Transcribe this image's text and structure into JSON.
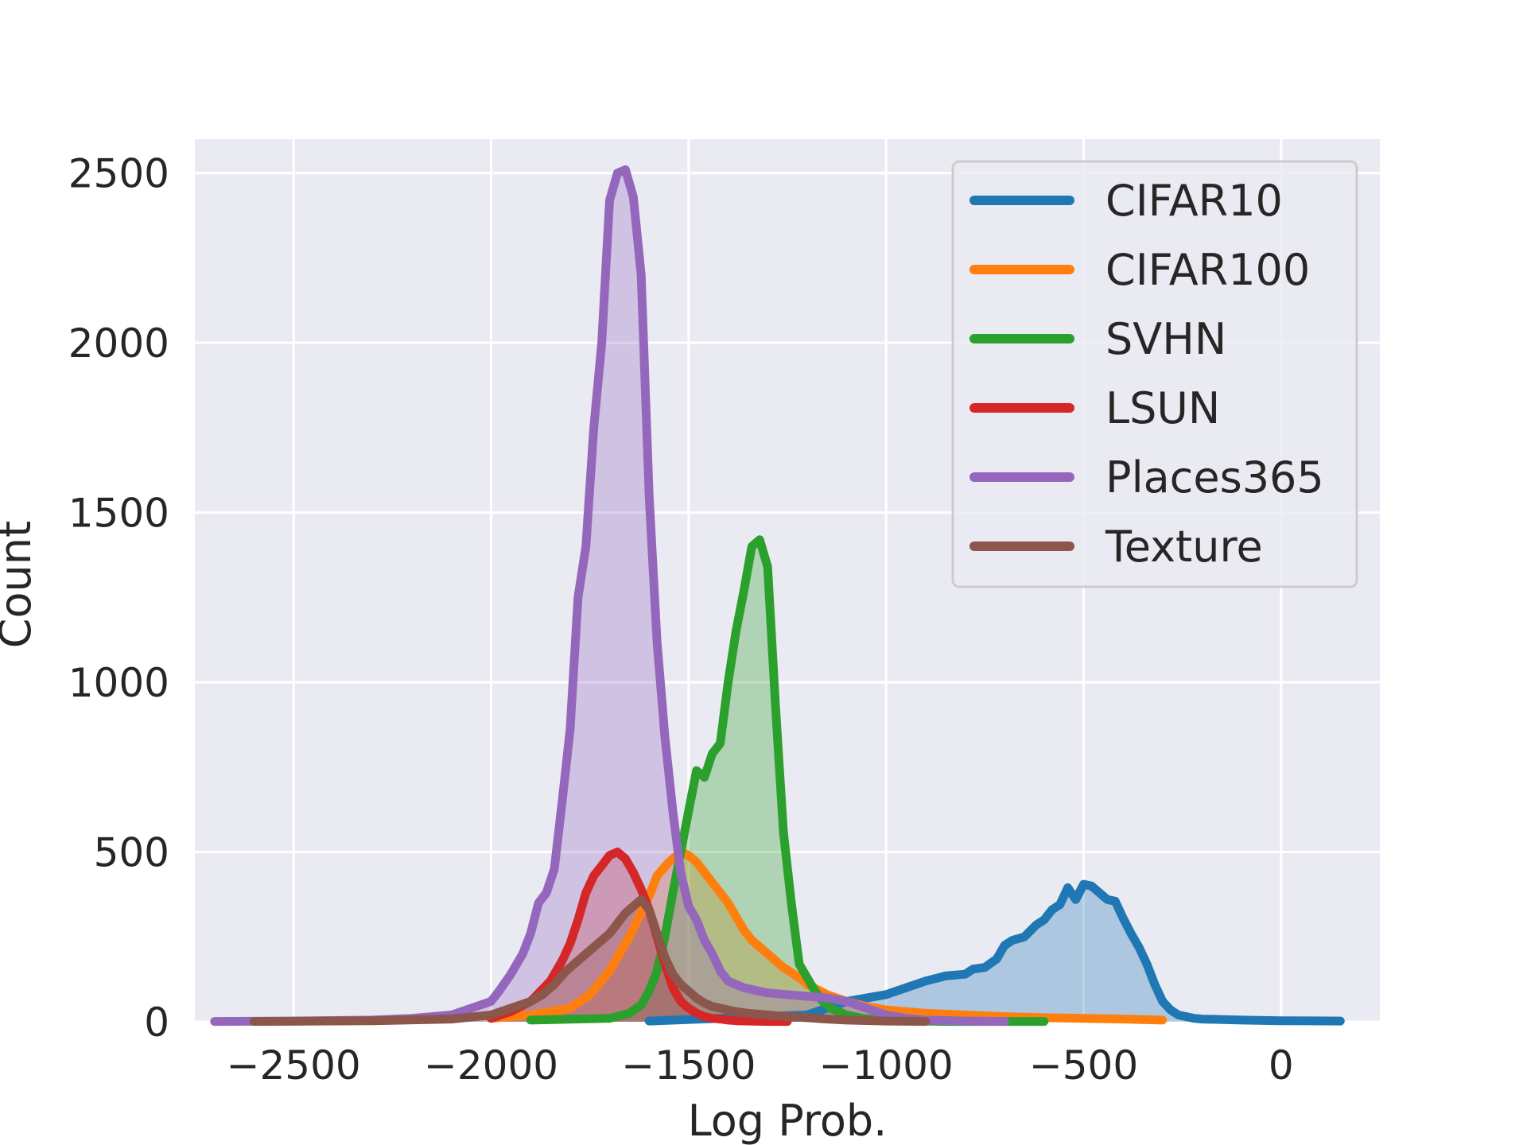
{
  "chart_data": {
    "type": "line",
    "title": "",
    "xlabel": "Log Prob.",
    "ylabel": "Count",
    "xlim": [
      -2750,
      250
    ],
    "ylim": [
      0,
      2600
    ],
    "xticks": [
      -2500,
      -2000,
      -1500,
      -1000,
      -500,
      0
    ],
    "xtick_labels": [
      "−2500",
      "−2000",
      "−1500",
      "−1000",
      "−500",
      "0"
    ],
    "yticks": [
      0,
      500,
      1000,
      1500,
      2000,
      2500
    ],
    "ytick_labels": [
      "0",
      "500",
      "1000",
      "1500",
      "2000",
      "2500"
    ],
    "grid": true,
    "legend_position": "top-right",
    "filled": true,
    "series": [
      {
        "name": "CIFAR10",
        "color": "#1f77b4",
        "x": [
          -1600,
          -1200,
          -1100,
          -1000,
          -950,
          -900,
          -850,
          -800,
          -780,
          -750,
          -720,
          -700,
          -680,
          -650,
          -620,
          -600,
          -580,
          -560,
          -540,
          -520,
          -500,
          -480,
          -460,
          -440,
          -420,
          -400,
          -380,
          -360,
          -340,
          -320,
          -300,
          -280,
          -260,
          -240,
          -220,
          -200,
          -100,
          0,
          150
        ],
        "y": [
          2,
          20,
          60,
          80,
          100,
          120,
          135,
          140,
          155,
          160,
          185,
          225,
          240,
          250,
          285,
          300,
          330,
          345,
          395,
          360,
          405,
          400,
          380,
          360,
          355,
          305,
          260,
          220,
          170,
          110,
          60,
          35,
          20,
          15,
          10,
          8,
          5,
          3,
          2
        ]
      },
      {
        "name": "CIFAR100",
        "color": "#ff7f0e",
        "x": [
          -2000,
          -1900,
          -1800,
          -1750,
          -1700,
          -1650,
          -1600,
          -1580,
          -1550,
          -1520,
          -1500,
          -1480,
          -1460,
          -1440,
          -1420,
          -1400,
          -1380,
          -1360,
          -1340,
          -1300,
          -1260,
          -1220,
          -1200,
          -1150,
          -1100,
          -1050,
          -1000,
          -900,
          -800,
          -700,
          -600,
          -500,
          -400,
          -300
        ],
        "y": [
          10,
          20,
          40,
          80,
          150,
          250,
          370,
          430,
          470,
          500,
          490,
          470,
          440,
          410,
          380,
          350,
          310,
          270,
          240,
          200,
          160,
          130,
          110,
          80,
          60,
          45,
          35,
          25,
          20,
          15,
          12,
          10,
          8,
          5
        ]
      },
      {
        "name": "SVHN",
        "color": "#2ca02c",
        "x": [
          -1900,
          -1700,
          -1650,
          -1620,
          -1600,
          -1580,
          -1560,
          -1540,
          -1520,
          -1500,
          -1480,
          -1460,
          -1440,
          -1420,
          -1400,
          -1380,
          -1360,
          -1340,
          -1320,
          -1300,
          -1280,
          -1260,
          -1240,
          -1220,
          -1200,
          -1180,
          -1160,
          -1140,
          -1120,
          -1100,
          -1080,
          -1060,
          -1040,
          -1020,
          -1000,
          -950,
          -900,
          -850,
          -800,
          -700,
          -600
        ],
        "y": [
          5,
          10,
          25,
          50,
          90,
          150,
          250,
          380,
          500,
          620,
          740,
          720,
          790,
          820,
          1000,
          1150,
          1270,
          1400,
          1420,
          1340,
          930,
          560,
          350,
          170,
          130,
          90,
          60,
          40,
          30,
          20,
          15,
          10,
          8,
          5,
          3,
          2,
          2,
          1,
          1,
          1,
          1
        ]
      },
      {
        "name": "LSUN",
        "color": "#d62728",
        "x": [
          -2000,
          -1950,
          -1900,
          -1850,
          -1820,
          -1800,
          -1780,
          -1760,
          -1740,
          -1720,
          -1700,
          -1680,
          -1660,
          -1640,
          -1620,
          -1600,
          -1580,
          -1560,
          -1540,
          -1520,
          -1500,
          -1480,
          -1460,
          -1440,
          -1420,
          -1400,
          -1380,
          -1350,
          -1300,
          -1250
        ],
        "y": [
          10,
          30,
          60,
          120,
          180,
          230,
          300,
          380,
          430,
          460,
          490,
          500,
          480,
          440,
          390,
          330,
          250,
          170,
          100,
          60,
          40,
          25,
          15,
          10,
          8,
          5,
          3,
          2,
          1,
          1
        ]
      },
      {
        "name": "Places365",
        "color": "#9467bd",
        "x": [
          -2700,
          -2500,
          -2300,
          -2200,
          -2100,
          -2050,
          -2000,
          -1980,
          -1950,
          -1920,
          -1900,
          -1880,
          -1860,
          -1840,
          -1820,
          -1800,
          -1780,
          -1760,
          -1740,
          -1720,
          -1700,
          -1680,
          -1660,
          -1640,
          -1620,
          -1600,
          -1580,
          -1560,
          -1540,
          -1520,
          -1500,
          -1480,
          -1460,
          -1440,
          -1420,
          -1400,
          -1380,
          -1360,
          -1340,
          -1320,
          -1300,
          -1250,
          -1200,
          -1150,
          -1100,
          -1050,
          -1000,
          -950,
          -900,
          -800,
          -700
        ],
        "y": [
          1,
          2,
          5,
          10,
          20,
          40,
          60,
          90,
          140,
          200,
          260,
          350,
          380,
          450,
          650,
          860,
          1250,
          1400,
          1750,
          2000,
          2420,
          2500,
          2510,
          2430,
          2200,
          1550,
          1120,
          840,
          620,
          440,
          340,
          300,
          240,
          200,
          150,
          120,
          110,
          100,
          95,
          90,
          85,
          80,
          75,
          70,
          60,
          40,
          20,
          10,
          5,
          2,
          1
        ]
      },
      {
        "name": "Texture",
        "color": "#8c564b",
        "x": [
          -2600,
          -2300,
          -2100,
          -2000,
          -1950,
          -1900,
          -1870,
          -1840,
          -1810,
          -1780,
          -1750,
          -1720,
          -1700,
          -1680,
          -1660,
          -1640,
          -1620,
          -1600,
          -1580,
          -1560,
          -1540,
          -1520,
          -1500,
          -1480,
          -1460,
          -1440,
          -1420,
          -1400,
          -1380,
          -1350,
          -1300,
          -1250,
          -1200,
          -1150,
          -1100,
          -1000,
          -900
        ],
        "y": [
          1,
          3,
          8,
          20,
          40,
          60,
          80,
          110,
          150,
          180,
          210,
          240,
          260,
          290,
          320,
          340,
          360,
          330,
          260,
          190,
          140,
          110,
          90,
          70,
          55,
          45,
          40,
          35,
          30,
          25,
          20,
          15,
          12,
          8,
          5,
          2,
          1
        ]
      }
    ]
  }
}
